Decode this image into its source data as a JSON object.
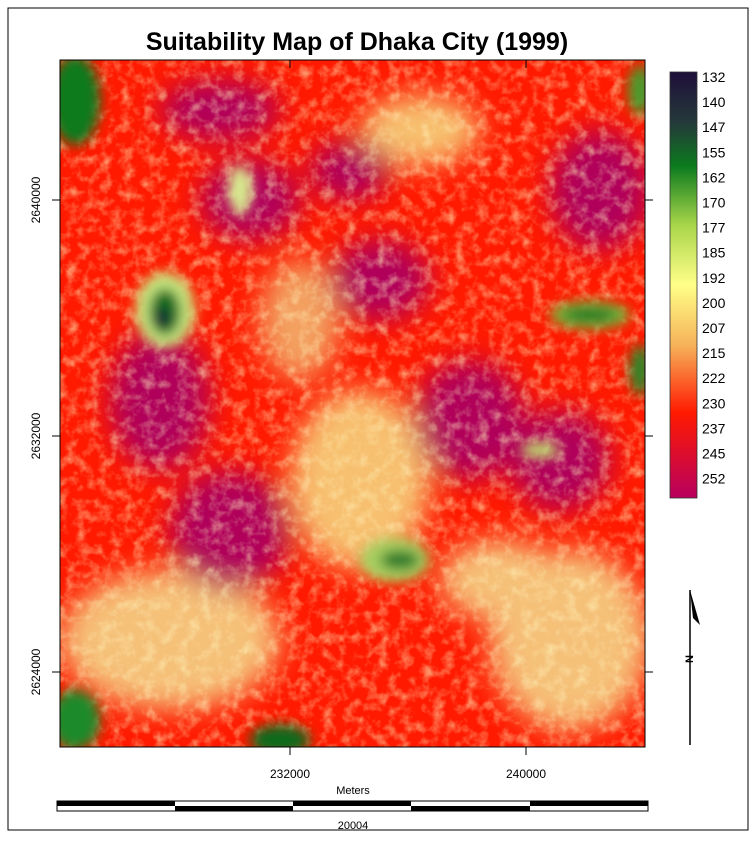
{
  "title": "Suitability Map of Dhaka City (1999)",
  "legend": {
    "labels": [
      132,
      140,
      147,
      155,
      162,
      170,
      177,
      185,
      192,
      200,
      207,
      215,
      222,
      230,
      237,
      245,
      252
    ]
  },
  "axes": {
    "y_ticks": [
      2640000,
      2632000,
      2624000
    ],
    "x_ticks": [
      232000,
      240000
    ]
  },
  "scale_bar": {
    "unit": "Meters",
    "label": "20004"
  },
  "north_arrow": {
    "label": "N"
  }
}
